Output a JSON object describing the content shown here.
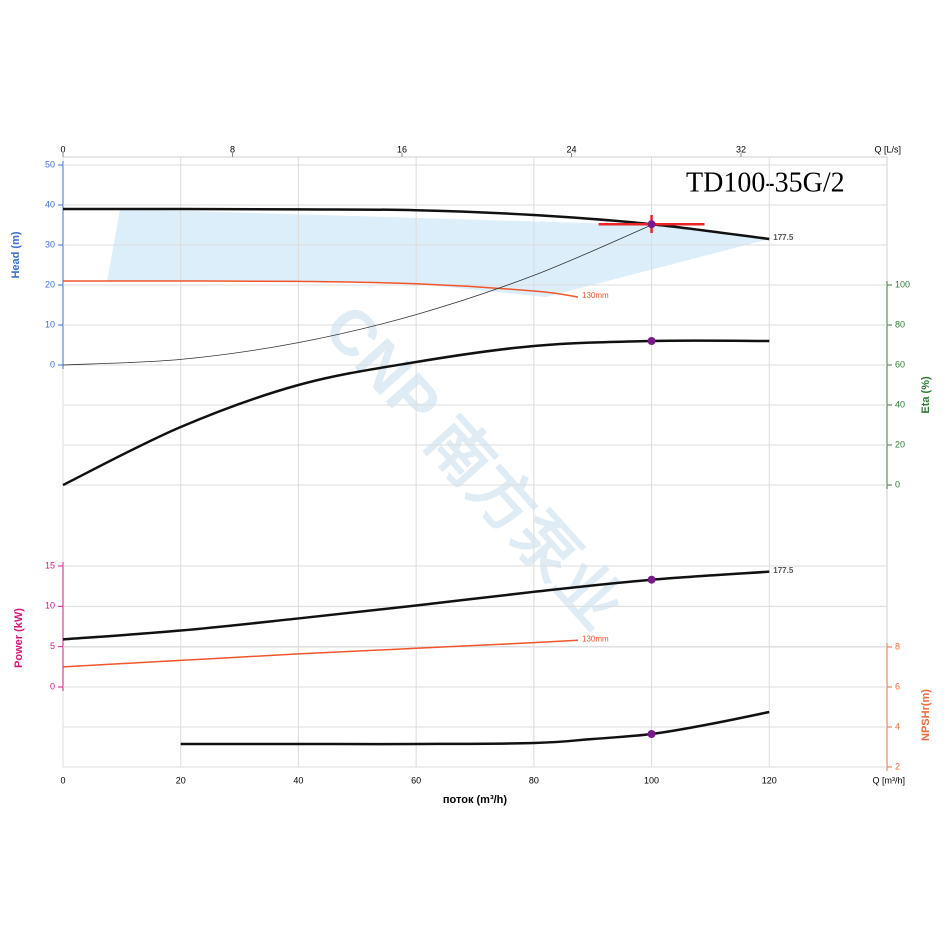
{
  "chart_data": {
    "type": "line",
    "title": "TD100-35G/2",
    "watermark": "CNP 南方泵业",
    "xlabel": "поток (m³/h)",
    "x_unit_label": "Q [m³/h]",
    "xlim": [
      0,
      140
    ],
    "xticks": [
      0,
      20,
      40,
      60,
      80,
      100,
      120
    ],
    "x2_unit_label": "Q [L/s]",
    "x2lim": [
      0,
      38.89
    ],
    "x2ticks": [
      0,
      8,
      16,
      24,
      32
    ],
    "grid": true,
    "axes": {
      "head": {
        "label": "Head (m)",
        "color": "#3a6fd8",
        "ylim": [
          0,
          50
        ],
        "yticks": [
          0,
          10,
          20,
          30,
          40,
          50
        ]
      },
      "eta": {
        "label": "Eta (%)",
        "color": "#2e7d32",
        "ylim": [
          0,
          100
        ],
        "yticks": [
          0,
          20,
          40,
          60,
          80,
          100
        ]
      },
      "power": {
        "label": "Power (kW)",
        "color": "#d4157e",
        "ylim": [
          0,
          15
        ],
        "yticks": [
          0,
          5,
          10,
          15
        ]
      },
      "npsh": {
        "label": "NPSHr(m)",
        "color": "#f06a3a",
        "ylim": [
          2,
          8
        ],
        "yticks": [
          2,
          4,
          6,
          8
        ]
      }
    },
    "operating_area": {
      "axis": "head",
      "color": "#d7ecfa",
      "x": [
        9.7,
        100,
        120,
        82,
        60,
        40,
        7.5
      ],
      "values": [
        39,
        35,
        31.5,
        17,
        20.3,
        20.9,
        21
      ]
    },
    "series": [
      {
        "name": "177.5",
        "axis": "head",
        "color": "#111111",
        "width": 2.5,
        "x": [
          0,
          20,
          40,
          60,
          80,
          100,
          120
        ],
        "values": [
          39,
          39,
          38.9,
          38.7,
          37.5,
          35.2,
          31.5
        ]
      },
      {
        "name": "130mm",
        "axis": "head",
        "color": "#f0562a",
        "width": 1.5,
        "x": [
          0,
          20,
          40,
          60,
          80,
          87.5
        ],
        "values": [
          21,
          21,
          20.9,
          20.3,
          18.5,
          17
        ]
      },
      {
        "axis": "head",
        "color": "#333333",
        "width": 0.8,
        "x": [
          0,
          20,
          40,
          60,
          80,
          100
        ],
        "values": [
          0,
          1.4,
          5.6,
          12.6,
          22.4,
          35
        ]
      },
      {
        "axis": "eta",
        "color": "#111111",
        "width": 2.5,
        "x": [
          0,
          20,
          40,
          60,
          80,
          100,
          120
        ],
        "values": [
          0,
          29,
          50,
          61.5,
          69.5,
          72,
          72
        ]
      },
      {
        "name": "177.5",
        "axis": "power",
        "color": "#111111",
        "width": 2.5,
        "x": [
          0,
          20,
          40,
          60,
          80,
          100,
          120
        ],
        "values": [
          5.9,
          7,
          8.5,
          10.1,
          11.8,
          13.3,
          14.3
        ]
      },
      {
        "name": "130mm",
        "axis": "power",
        "color": "#f0562a",
        "width": 1.5,
        "x": [
          0,
          20,
          40,
          60,
          80,
          87.5
        ],
        "values": [
          2.5,
          3.3,
          4.1,
          4.8,
          5.5,
          5.8
        ]
      },
      {
        "axis": "npsh",
        "color": "#111111",
        "width": 2.5,
        "x": [
          20,
          40,
          60,
          80,
          90,
          100,
          110,
          120
        ],
        "values": [
          3.15,
          3.15,
          3.15,
          3.2,
          3.4,
          3.65,
          4.15,
          4.75
        ]
      }
    ],
    "duty_point": {
      "x": 100,
      "head": 35.2,
      "eta": 72,
      "power": 13.3,
      "npsh": 3.65,
      "color": "#7a1a8a",
      "cross_color": "#e8262a",
      "cross_x": [
        91,
        109
      ],
      "cross_head": [
        33,
        37.5
      ]
    }
  }
}
